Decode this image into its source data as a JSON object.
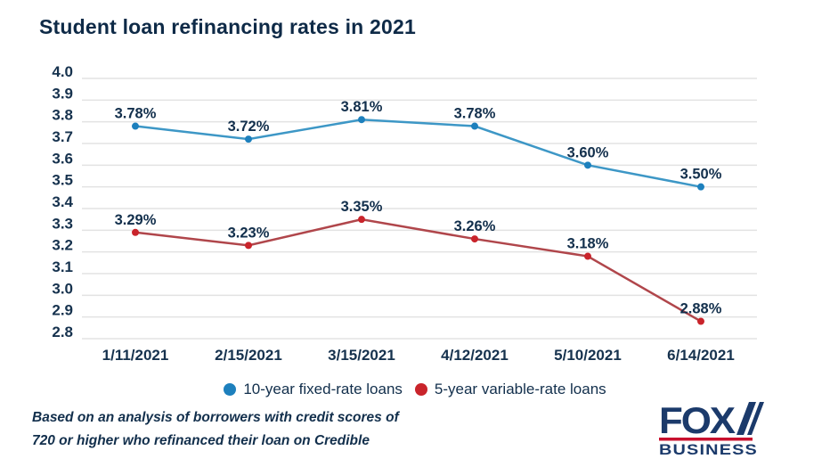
{
  "chart_data": {
    "type": "line",
    "title": "Student loan refinancing rates in 2021",
    "x": [
      "1/11/2021",
      "2/15/2021",
      "3/15/2021",
      "4/12/2021",
      "5/10/2021",
      "6/14/2021"
    ],
    "series": [
      {
        "name": "10-year fixed-rate loans",
        "values": [
          3.78,
          3.72,
          3.81,
          3.78,
          3.6,
          3.5
        ],
        "point_labels": [
          "3.78%",
          "3.72%",
          "3.81%",
          "3.78%",
          "3.60%",
          "3.50%"
        ],
        "line_color": "#3d97c6",
        "marker_color": "#1d80bd"
      },
      {
        "name": "5-year variable-rate loans",
        "values": [
          3.29,
          3.23,
          3.35,
          3.26,
          3.18,
          2.88
        ],
        "point_labels": [
          "3.29%",
          "3.23%",
          "3.35%",
          "3.26%",
          "3.18%",
          "2.88%"
        ],
        "line_color": "#b0464b",
        "marker_color": "#c9242b"
      }
    ],
    "ylim": [
      2.8,
      4.0
    ],
    "yticks": [
      "4.0",
      "3.9",
      "3.8",
      "3.7",
      "3.6",
      "3.5",
      "3.4",
      "3.3",
      "3.2",
      "3.1",
      "3.0",
      "2.9",
      "2.8"
    ],
    "grid": "horizontal",
    "gridline_color": "#e3e3e3",
    "legend_position": "bottom"
  },
  "footnote": {
    "line1": "Based on an analysis of borrowers with credit scores of",
    "line2": "720 or higher who refinanced their loan on Credible"
  },
  "logo": {
    "line1": "FOX",
    "line2": "BUSINESS",
    "navy": "#1b3a6b",
    "red": "#c8102e"
  },
  "colors": {
    "title_text": "#0e2a47",
    "axis_text": "#16324e",
    "background": "#ffffff"
  }
}
